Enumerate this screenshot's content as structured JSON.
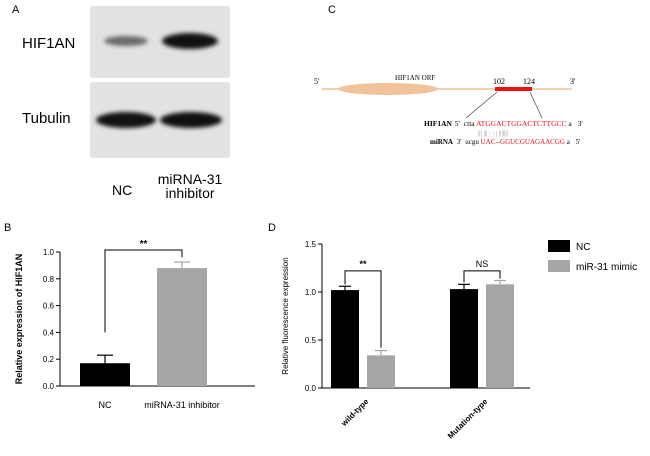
{
  "panels": {
    "A": {
      "letter": "A",
      "rows": [
        {
          "label": "HIF1AN",
          "band_intensity": [
            0.35,
            0.95
          ]
        },
        {
          "label": "Tubulin",
          "band_intensity": [
            0.95,
            0.95
          ]
        }
      ],
      "lanes": [
        "NC",
        "miRNA-31\ninhibitor"
      ]
    },
    "B": {
      "letter": "B"
    },
    "C": {
      "letter": "C",
      "five_prime": "5'",
      "three_prime": "3'",
      "orf_label": "HIF1AN ORF",
      "pos_start": "102",
      "pos_end": "124",
      "target": {
        "name": "HIF1AN",
        "prime5": "5'",
        "lower": "ctta",
        "seq": "ATGGACTGGACTCTTGCC",
        "tail": "a",
        "prime3": "3'"
      },
      "pairing": "|||  |||  :  :  |  |||||||",
      "mirna": {
        "name": "miRNA",
        "prime3": "3'",
        "lower": "ucgu",
        "seq": "UAC--GGUCGUAGAACGG",
        "tail": "a",
        "prime5": "5'"
      }
    },
    "D": {
      "letter": "D"
    }
  },
  "colors": {
    "black_bar": "#000000",
    "gray_bar": "#a6a6a6",
    "orf": "#f2c29a",
    "mir_site": "#ee1111",
    "seq_red": "#e8141c"
  },
  "chart_data": [
    {
      "type": "bar",
      "panel": "B",
      "categories": [
        "NC",
        "miRNA-31 inhibitor"
      ],
      "values": [
        0.17,
        0.88
      ],
      "errors": [
        0.06,
        0.045
      ],
      "bar_colors": [
        "#000000",
        "#a6a6a6"
      ],
      "ylabel": "Relative expression of HIF1AN",
      "ylim": [
        0,
        1.0
      ],
      "yticks": [
        "0.0",
        "0.2",
        "0.4",
        "0.6",
        "0.8",
        "1.0"
      ],
      "significance": "**",
      "grid": false
    },
    {
      "type": "bar",
      "panel": "D",
      "categories": [
        "wild-type",
        "Mutation-type"
      ],
      "series": [
        {
          "name": "NC",
          "values": [
            1.02,
            1.03
          ],
          "errors": [
            0.04,
            0.05
          ],
          "color": "#000000"
        },
        {
          "name": "miR-31 mimic",
          "values": [
            0.34,
            1.08
          ],
          "errors": [
            0.05,
            0.04
          ],
          "color": "#a6a6a6"
        }
      ],
      "ylabel": "Relative fluorescence expression",
      "ylim": [
        0,
        1.5
      ],
      "yticks": [
        "0.0",
        "0.5",
        "1.0",
        "1.5"
      ],
      "significance": [
        "**",
        "NS"
      ],
      "legend": "right",
      "grid": false
    }
  ]
}
